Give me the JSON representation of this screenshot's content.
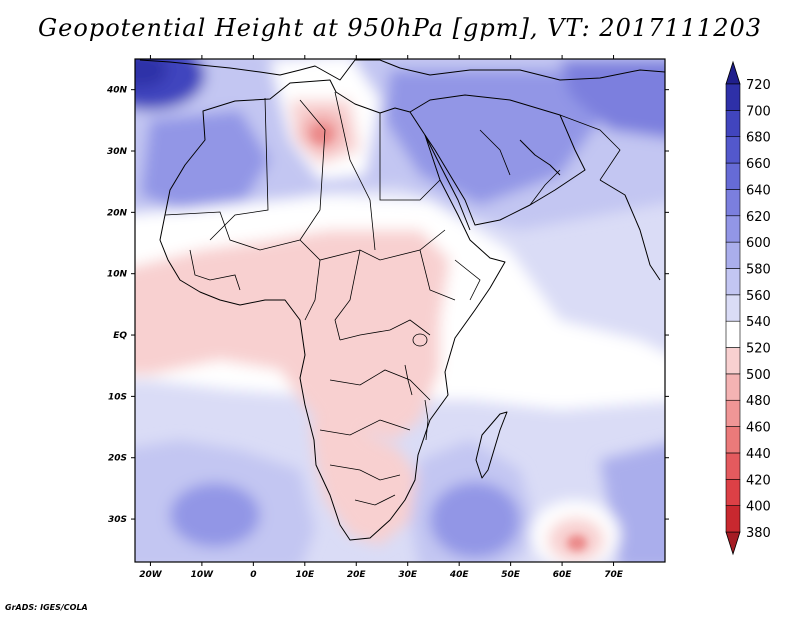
{
  "title": "Geopotential Height at 950hPa [gpm], VT: 2017111203",
  "footer": "GrADS: IGES/COLA",
  "map": {
    "lon_range": [
      -23,
      80
    ],
    "lat_range": [
      -37,
      45
    ],
    "lon_ticks": [
      {
        "value": -20,
        "label": "20W"
      },
      {
        "value": -10,
        "label": "10W"
      },
      {
        "value": 0,
        "label": "0"
      },
      {
        "value": 10,
        "label": "10E"
      },
      {
        "value": 20,
        "label": "20E"
      },
      {
        "value": 30,
        "label": "30E"
      },
      {
        "value": 40,
        "label": "40E"
      },
      {
        "value": 50,
        "label": "50E"
      },
      {
        "value": 60,
        "label": "60E"
      },
      {
        "value": 70,
        "label": "70E"
      }
    ],
    "lat_ticks": [
      {
        "value": 40,
        "label": "40N"
      },
      {
        "value": 30,
        "label": "30N"
      },
      {
        "value": 20,
        "label": "20N"
      },
      {
        "value": 10,
        "label": "10N"
      },
      {
        "value": 0,
        "label": "EQ"
      },
      {
        "value": -10,
        "label": "10S"
      },
      {
        "value": -20,
        "label": "20S"
      },
      {
        "value": -30,
        "label": "30S"
      }
    ]
  },
  "colorbar": {
    "levels": [
      "380",
      "400",
      "420",
      "440",
      "460",
      "480",
      "500",
      "520",
      "540",
      "560",
      "580",
      "600",
      "620",
      "640",
      "660",
      "680",
      "700",
      "720"
    ],
    "colors": [
      "#a51c24",
      "#c8282f",
      "#dc4046",
      "#e45a5e",
      "#eb7a7a",
      "#f09696",
      "#f4b3b3",
      "#f8d0d0",
      "#ffffff",
      "#dadcf6",
      "#c3c6f2",
      "#aaaeec",
      "#9296e6",
      "#7b7fde",
      "#666bd6",
      "#5358cc",
      "#4145be",
      "#2e30a8",
      "#201f8c"
    ]
  },
  "field_regions": [
    {
      "name": "ne-atlantic-high",
      "lon": -20,
      "lat": 42,
      "value": 700
    },
    {
      "name": "sahara-cool",
      "lon": -8,
      "lat": 25,
      "value": 610
    },
    {
      "name": "libya-low",
      "lon": 14,
      "lat": 31,
      "value": 500
    },
    {
      "name": "arabia-high",
      "lon": 45,
      "lat": 32,
      "value": 630
    },
    {
      "name": "tropical-trough",
      "lon": 20,
      "lat": 5,
      "value": 525
    },
    {
      "name": "s-atlantic-high",
      "lon": -5,
      "lat": -30,
      "value": 625
    },
    {
      "name": "s-indian-high",
      "lon": 45,
      "lat": -30,
      "value": 630
    },
    {
      "name": "mascarene-low",
      "lon": 63,
      "lat": -34,
      "value": 500
    },
    {
      "name": "kalahari-low",
      "lon": 25,
      "lat": -28,
      "value": 525
    }
  ]
}
